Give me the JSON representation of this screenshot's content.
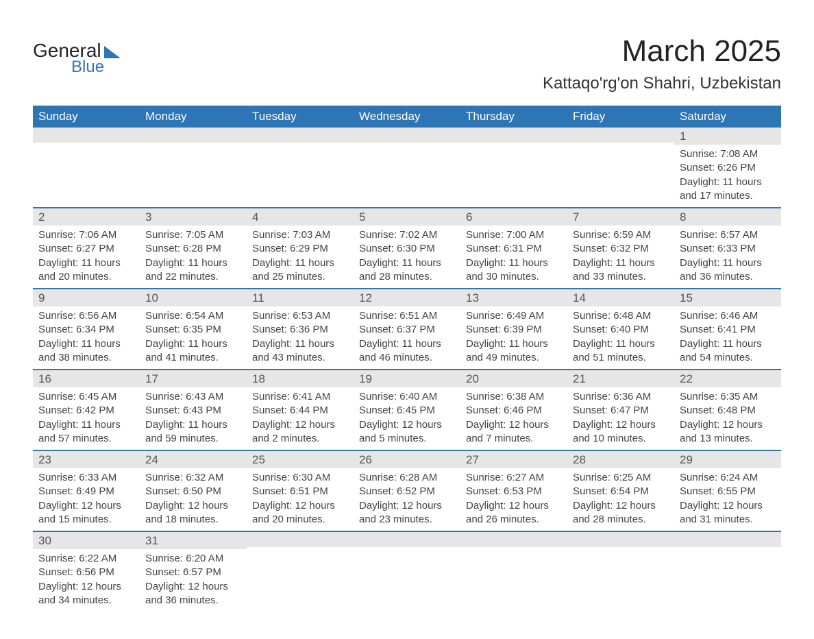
{
  "logo": {
    "text1": "General",
    "text2": "Blue",
    "accent_color": "#2e75b6"
  },
  "title": "March 2025",
  "location": "Kattaqo'rg'on Shahri, Uzbekistan",
  "colors": {
    "header_bg": "#2e75b6",
    "header_text": "#ffffff",
    "date_bar_bg": "#e6e6e6",
    "row_border": "#2e75b6",
    "text": "#444444"
  },
  "fonts": {
    "title_size": 44,
    "location_size": 24,
    "header_size": 17,
    "body_size": 15
  },
  "day_names": [
    "Sunday",
    "Monday",
    "Tuesday",
    "Wednesday",
    "Thursday",
    "Friday",
    "Saturday"
  ],
  "weeks": [
    [
      {
        "date": "",
        "sunrise": "",
        "sunset": "",
        "daylight": ""
      },
      {
        "date": "",
        "sunrise": "",
        "sunset": "",
        "daylight": ""
      },
      {
        "date": "",
        "sunrise": "",
        "sunset": "",
        "daylight": ""
      },
      {
        "date": "",
        "sunrise": "",
        "sunset": "",
        "daylight": ""
      },
      {
        "date": "",
        "sunrise": "",
        "sunset": "",
        "daylight": ""
      },
      {
        "date": "",
        "sunrise": "",
        "sunset": "",
        "daylight": ""
      },
      {
        "date": "1",
        "sunrise": "Sunrise: 7:08 AM",
        "sunset": "Sunset: 6:26 PM",
        "daylight": "Daylight: 11 hours and 17 minutes."
      }
    ],
    [
      {
        "date": "2",
        "sunrise": "Sunrise: 7:06 AM",
        "sunset": "Sunset: 6:27 PM",
        "daylight": "Daylight: 11 hours and 20 minutes."
      },
      {
        "date": "3",
        "sunrise": "Sunrise: 7:05 AM",
        "sunset": "Sunset: 6:28 PM",
        "daylight": "Daylight: 11 hours and 22 minutes."
      },
      {
        "date": "4",
        "sunrise": "Sunrise: 7:03 AM",
        "sunset": "Sunset: 6:29 PM",
        "daylight": "Daylight: 11 hours and 25 minutes."
      },
      {
        "date": "5",
        "sunrise": "Sunrise: 7:02 AM",
        "sunset": "Sunset: 6:30 PM",
        "daylight": "Daylight: 11 hours and 28 minutes."
      },
      {
        "date": "6",
        "sunrise": "Sunrise: 7:00 AM",
        "sunset": "Sunset: 6:31 PM",
        "daylight": "Daylight: 11 hours and 30 minutes."
      },
      {
        "date": "7",
        "sunrise": "Sunrise: 6:59 AM",
        "sunset": "Sunset: 6:32 PM",
        "daylight": "Daylight: 11 hours and 33 minutes."
      },
      {
        "date": "8",
        "sunrise": "Sunrise: 6:57 AM",
        "sunset": "Sunset: 6:33 PM",
        "daylight": "Daylight: 11 hours and 36 minutes."
      }
    ],
    [
      {
        "date": "9",
        "sunrise": "Sunrise: 6:56 AM",
        "sunset": "Sunset: 6:34 PM",
        "daylight": "Daylight: 11 hours and 38 minutes."
      },
      {
        "date": "10",
        "sunrise": "Sunrise: 6:54 AM",
        "sunset": "Sunset: 6:35 PM",
        "daylight": "Daylight: 11 hours and 41 minutes."
      },
      {
        "date": "11",
        "sunrise": "Sunrise: 6:53 AM",
        "sunset": "Sunset: 6:36 PM",
        "daylight": "Daylight: 11 hours and 43 minutes."
      },
      {
        "date": "12",
        "sunrise": "Sunrise: 6:51 AM",
        "sunset": "Sunset: 6:37 PM",
        "daylight": "Daylight: 11 hours and 46 minutes."
      },
      {
        "date": "13",
        "sunrise": "Sunrise: 6:49 AM",
        "sunset": "Sunset: 6:39 PM",
        "daylight": "Daylight: 11 hours and 49 minutes."
      },
      {
        "date": "14",
        "sunrise": "Sunrise: 6:48 AM",
        "sunset": "Sunset: 6:40 PM",
        "daylight": "Daylight: 11 hours and 51 minutes."
      },
      {
        "date": "15",
        "sunrise": "Sunrise: 6:46 AM",
        "sunset": "Sunset: 6:41 PM",
        "daylight": "Daylight: 11 hours and 54 minutes."
      }
    ],
    [
      {
        "date": "16",
        "sunrise": "Sunrise: 6:45 AM",
        "sunset": "Sunset: 6:42 PM",
        "daylight": "Daylight: 11 hours and 57 minutes."
      },
      {
        "date": "17",
        "sunrise": "Sunrise: 6:43 AM",
        "sunset": "Sunset: 6:43 PM",
        "daylight": "Daylight: 11 hours and 59 minutes."
      },
      {
        "date": "18",
        "sunrise": "Sunrise: 6:41 AM",
        "sunset": "Sunset: 6:44 PM",
        "daylight": "Daylight: 12 hours and 2 minutes."
      },
      {
        "date": "19",
        "sunrise": "Sunrise: 6:40 AM",
        "sunset": "Sunset: 6:45 PM",
        "daylight": "Daylight: 12 hours and 5 minutes."
      },
      {
        "date": "20",
        "sunrise": "Sunrise: 6:38 AM",
        "sunset": "Sunset: 6:46 PM",
        "daylight": "Daylight: 12 hours and 7 minutes."
      },
      {
        "date": "21",
        "sunrise": "Sunrise: 6:36 AM",
        "sunset": "Sunset: 6:47 PM",
        "daylight": "Daylight: 12 hours and 10 minutes."
      },
      {
        "date": "22",
        "sunrise": "Sunrise: 6:35 AM",
        "sunset": "Sunset: 6:48 PM",
        "daylight": "Daylight: 12 hours and 13 minutes."
      }
    ],
    [
      {
        "date": "23",
        "sunrise": "Sunrise: 6:33 AM",
        "sunset": "Sunset: 6:49 PM",
        "daylight": "Daylight: 12 hours and 15 minutes."
      },
      {
        "date": "24",
        "sunrise": "Sunrise: 6:32 AM",
        "sunset": "Sunset: 6:50 PM",
        "daylight": "Daylight: 12 hours and 18 minutes."
      },
      {
        "date": "25",
        "sunrise": "Sunrise: 6:30 AM",
        "sunset": "Sunset: 6:51 PM",
        "daylight": "Daylight: 12 hours and 20 minutes."
      },
      {
        "date": "26",
        "sunrise": "Sunrise: 6:28 AM",
        "sunset": "Sunset: 6:52 PM",
        "daylight": "Daylight: 12 hours and 23 minutes."
      },
      {
        "date": "27",
        "sunrise": "Sunrise: 6:27 AM",
        "sunset": "Sunset: 6:53 PM",
        "daylight": "Daylight: 12 hours and 26 minutes."
      },
      {
        "date": "28",
        "sunrise": "Sunrise: 6:25 AM",
        "sunset": "Sunset: 6:54 PM",
        "daylight": "Daylight: 12 hours and 28 minutes."
      },
      {
        "date": "29",
        "sunrise": "Sunrise: 6:24 AM",
        "sunset": "Sunset: 6:55 PM",
        "daylight": "Daylight: 12 hours and 31 minutes."
      }
    ],
    [
      {
        "date": "30",
        "sunrise": "Sunrise: 6:22 AM",
        "sunset": "Sunset: 6:56 PM",
        "daylight": "Daylight: 12 hours and 34 minutes."
      },
      {
        "date": "31",
        "sunrise": "Sunrise: 6:20 AM",
        "sunset": "Sunset: 6:57 PM",
        "daylight": "Daylight: 12 hours and 36 minutes."
      },
      {
        "date": "",
        "sunrise": "",
        "sunset": "",
        "daylight": ""
      },
      {
        "date": "",
        "sunrise": "",
        "sunset": "",
        "daylight": ""
      },
      {
        "date": "",
        "sunrise": "",
        "sunset": "",
        "daylight": ""
      },
      {
        "date": "",
        "sunrise": "",
        "sunset": "",
        "daylight": ""
      },
      {
        "date": "",
        "sunrise": "",
        "sunset": "",
        "daylight": ""
      }
    ]
  ]
}
